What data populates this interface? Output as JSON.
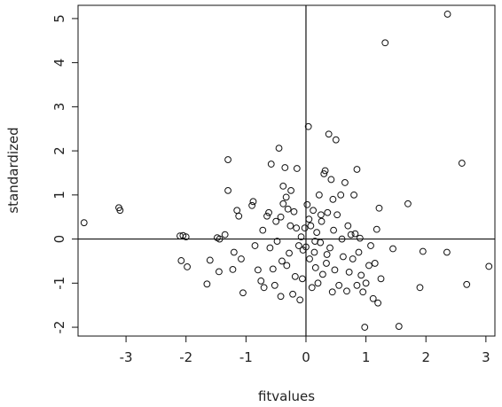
{
  "chart_data": {
    "type": "scatter",
    "xlabel": "fitvalues",
    "ylabel": "standardized",
    "xlim": [
      -3.8,
      3.15
    ],
    "ylim": [
      -2.2,
      5.3
    ],
    "xticks": [
      -3,
      -2,
      -1,
      0,
      1,
      2,
      3
    ],
    "yticks": [
      -2,
      -1,
      0,
      1,
      2,
      3,
      4,
      5
    ],
    "reference_lines": {
      "x": 0,
      "y": 0
    },
    "grid": false,
    "legend": "none",
    "points": [
      [
        2.36,
        5.1
      ],
      [
        1.32,
        4.45
      ],
      [
        2.6,
        1.72
      ],
      [
        1.7,
        0.8
      ],
      [
        0.85,
        1.58
      ],
      [
        2.68,
        -1.03
      ],
      [
        3.05,
        -0.62
      ],
      [
        1.9,
        -1.1
      ],
      [
        1.55,
        -1.98
      ],
      [
        0.98,
        -2.0
      ],
      [
        2.35,
        -0.3
      ],
      [
        1.95,
        -0.28
      ],
      [
        1.45,
        -0.22
      ],
      [
        1.22,
        0.7
      ],
      [
        1.18,
        0.22
      ],
      [
        -3.7,
        0.37
      ],
      [
        -3.12,
        0.71
      ],
      [
        -3.1,
        0.65
      ],
      [
        -2.1,
        0.07
      ],
      [
        -2.05,
        0.08
      ],
      [
        -2.0,
        0.05
      ],
      [
        -2.08,
        -0.49
      ],
      [
        -1.98,
        -0.63
      ],
      [
        -1.65,
        -1.02
      ],
      [
        -1.6,
        -0.48
      ],
      [
        -1.48,
        0.03
      ],
      [
        -1.44,
        0.0
      ],
      [
        -1.45,
        -0.74
      ],
      [
        -1.35,
        0.1
      ],
      [
        -1.3,
        1.8
      ],
      [
        -1.3,
        1.1
      ],
      [
        -1.22,
        -0.69
      ],
      [
        -1.2,
        -0.3
      ],
      [
        -1.15,
        0.65
      ],
      [
        -1.12,
        0.52
      ],
      [
        -1.08,
        -0.45
      ],
      [
        -1.05,
        -1.22
      ],
      [
        -0.9,
        0.76
      ],
      [
        -0.88,
        0.85
      ],
      [
        -0.85,
        -0.15
      ],
      [
        -0.8,
        -0.7
      ],
      [
        -0.75,
        -0.95
      ],
      [
        -0.72,
        0.2
      ],
      [
        -0.7,
        -1.1
      ],
      [
        -0.65,
        0.52
      ],
      [
        -0.62,
        0.6
      ],
      [
        -0.6,
        -0.2
      ],
      [
        -0.58,
        1.7
      ],
      [
        -0.55,
        -0.68
      ],
      [
        -0.52,
        -1.05
      ],
      [
        -0.5,
        0.4
      ],
      [
        -0.45,
        2.06
      ],
      [
        -0.42,
        0.5
      ],
      [
        -0.4,
        -0.5
      ],
      [
        -0.38,
        0.8
      ],
      [
        -0.35,
        1.62
      ],
      [
        -0.32,
        -0.6
      ],
      [
        -0.3,
        0.68
      ],
      [
        -0.28,
        -0.32
      ],
      [
        -0.25,
        1.1
      ],
      [
        -0.22,
        -1.25
      ],
      [
        -0.2,
        0.62
      ],
      [
        -0.18,
        -0.85
      ],
      [
        -0.16,
        0.25
      ],
      [
        -0.15,
        1.6
      ],
      [
        -0.12,
        -0.15
      ],
      [
        -0.1,
        -1.38
      ],
      [
        -0.08,
        0.05
      ],
      [
        -0.06,
        -0.9
      ],
      [
        -0.05,
        -0.25
      ],
      [
        -0.38,
        1.2
      ],
      [
        -0.33,
        0.95
      ],
      [
        -0.26,
        0.3
      ],
      [
        -0.42,
        -1.3
      ],
      [
        -0.48,
        -0.05
      ],
      [
        -0.02,
        0.25
      ],
      [
        0.0,
        -0.18
      ],
      [
        0.02,
        0.78
      ],
      [
        0.04,
        2.55
      ],
      [
        0.06,
        -0.45
      ],
      [
        0.08,
        0.3
      ],
      [
        0.1,
        -1.1
      ],
      [
        0.12,
        0.65
      ],
      [
        0.14,
        -0.3
      ],
      [
        0.16,
        -0.65
      ],
      [
        0.18,
        0.15
      ],
      [
        0.2,
        -1.0
      ],
      [
        0.22,
        1.0
      ],
      [
        0.24,
        -0.08
      ],
      [
        0.26,
        0.4
      ],
      [
        0.28,
        -0.8
      ],
      [
        0.3,
        1.48
      ],
      [
        0.32,
        1.55
      ],
      [
        0.34,
        -0.55
      ],
      [
        0.36,
        0.6
      ],
      [
        0.38,
        2.38
      ],
      [
        0.4,
        -0.2
      ],
      [
        0.42,
        1.35
      ],
      [
        0.44,
        -1.2
      ],
      [
        0.46,
        0.2
      ],
      [
        0.48,
        -0.7
      ],
      [
        0.5,
        2.25
      ],
      [
        0.52,
        0.55
      ],
      [
        0.55,
        -1.05
      ],
      [
        0.58,
        1.0
      ],
      [
        0.6,
        0.0
      ],
      [
        0.62,
        -0.4
      ],
      [
        0.65,
        1.28
      ],
      [
        0.68,
        -1.18
      ],
      [
        0.7,
        0.3
      ],
      [
        0.72,
        -0.75
      ],
      [
        0.75,
        0.1
      ],
      [
        0.78,
        -0.45
      ],
      [
        0.8,
        1.0
      ],
      [
        0.82,
        0.12
      ],
      [
        0.85,
        -1.05
      ],
      [
        0.88,
        -0.3
      ],
      [
        0.9,
        0.02
      ],
      [
        0.92,
        -0.82
      ],
      [
        0.95,
        -1.2
      ],
      [
        1.0,
        -1.0
      ],
      [
        1.05,
        -0.6
      ],
      [
        1.08,
        -0.15
      ],
      [
        1.12,
        -1.35
      ],
      [
        1.15,
        -0.55
      ],
      [
        1.2,
        -1.45
      ],
      [
        1.25,
        -0.9
      ],
      [
        0.15,
        -0.05
      ],
      [
        0.25,
        0.55
      ],
      [
        0.35,
        -0.35
      ],
      [
        0.45,
        0.9
      ],
      [
        0.05,
        0.45
      ]
    ]
  }
}
